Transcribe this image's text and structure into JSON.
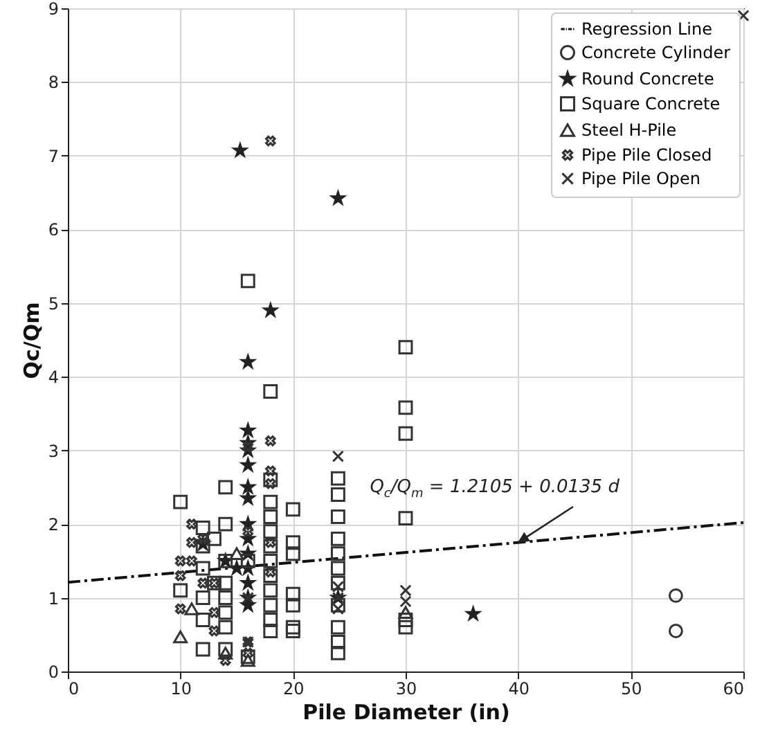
{
  "chart_data": {
    "type": "scatter",
    "xlabel": "Pile Diameter (in)",
    "ylabel": "Qc/Qm",
    "xlim": [
      0,
      60
    ],
    "xticks": [
      0,
      10,
      20,
      30,
      40,
      50,
      60
    ],
    "ylim": [
      0,
      9
    ],
    "yticks": [
      0,
      1,
      2,
      3,
      4,
      5,
      6,
      7,
      8,
      9
    ],
    "grid": true,
    "legend": "top right",
    "annotations": [
      {
        "text": "Q$_{c}$/Q$_{m}$ = 1.2105 + 0.0135 d",
        "x": 40,
        "y": 1.75
      }
    ],
    "series": [
      {
        "name": "Regression Line",
        "type": "line",
        "color": "#111111",
        "line_style": "dashed",
        "marker": "none",
        "x": [
          0,
          60
        ],
        "values": [
          1.21,
          2.02
        ]
      },
      {
        "name": "Concrete Cylinder",
        "color": "#333333",
        "marker": "circle",
        "x": [
          54,
          54
        ],
        "values": [
          1.03,
          0.55
        ]
      },
      {
        "name": "Round Concrete",
        "color": "#222222",
        "marker": "star",
        "x": [
          15.3,
          24,
          18,
          16,
          16,
          16,
          16,
          16,
          16,
          16,
          16,
          16,
          16,
          16,
          16,
          16,
          12,
          14,
          36,
          16,
          24,
          15
        ],
        "values": [
          7.07,
          6.42,
          4.9,
          4.2,
          3.27,
          3.1,
          3.0,
          2.8,
          2.35,
          2.0,
          1.8,
          1.6,
          1.4,
          1.2,
          1.0,
          0.9,
          1.73,
          1.5,
          0.78,
          2.5,
          1.0,
          1.4
        ]
      },
      {
        "name": "Square Concrete",
        "color": "#333333",
        "marker": "square",
        "x": [
          16,
          18,
          30,
          30,
          30,
          30,
          24,
          24,
          24,
          24,
          24,
          24,
          24,
          24,
          24,
          24,
          24,
          20,
          20,
          20,
          20,
          20,
          20,
          20,
          18,
          18,
          18,
          18,
          18,
          18,
          18,
          18,
          18,
          18,
          18,
          14,
          14,
          14,
          14,
          14,
          14,
          14,
          14,
          12,
          12,
          12,
          12,
          12,
          12,
          10,
          10,
          13,
          13,
          16,
          30,
          30,
          16
        ],
        "values": [
          5.3,
          3.8,
          4.4,
          3.58,
          3.23,
          2.08,
          2.62,
          2.4,
          2.1,
          1.8,
          1.6,
          1.4,
          1.2,
          0.9,
          0.6,
          0.4,
          0.25,
          2.2,
          1.75,
          1.6,
          1.05,
          0.9,
          0.6,
          0.55,
          2.6,
          2.3,
          2.1,
          1.9,
          1.7,
          1.5,
          1.3,
          1.1,
          0.9,
          0.7,
          0.55,
          2.5,
          2.0,
          1.5,
          1.2,
          1.0,
          0.8,
          0.6,
          0.3,
          1.95,
          1.7,
          1.4,
          1.0,
          0.7,
          0.3,
          2.3,
          1.1,
          1.8,
          1.2,
          0.2,
          0.6,
          0.7,
          1.5
        ]
      },
      {
        "name": "Steel H-Pile",
        "color": "#333333",
        "marker": "triangle",
        "x": [
          10,
          11,
          14,
          15,
          30,
          16
        ],
        "values": [
          0.47,
          0.85,
          0.25,
          1.6,
          0.8,
          0.15
        ]
      },
      {
        "name": "Pipe Pile Closed",
        "color": "#333333",
        "marker": "cross",
        "x": [
          18,
          18,
          18,
          18,
          18,
          18,
          16,
          16,
          14,
          10,
          10,
          10,
          11,
          11,
          11,
          12,
          12,
          13,
          13,
          13,
          16,
          16
        ],
        "values": [
          7.2,
          3.13,
          2.72,
          2.55,
          1.75,
          1.35,
          0.4,
          0.25,
          0.15,
          1.5,
          1.3,
          0.85,
          2.0,
          1.75,
          1.5,
          1.8,
          1.2,
          1.2,
          0.8,
          0.55,
          1.9,
          3.05
        ]
      },
      {
        "name": "Pipe Pile Open",
        "color": "#333333",
        "marker": "x",
        "x": [
          60,
          24,
          24,
          24,
          24,
          30,
          30,
          16,
          16
        ],
        "values": [
          8.9,
          2.92,
          1.15,
          1.0,
          0.85,
          1.1,
          0.95,
          0.4,
          1.0
        ]
      }
    ]
  }
}
